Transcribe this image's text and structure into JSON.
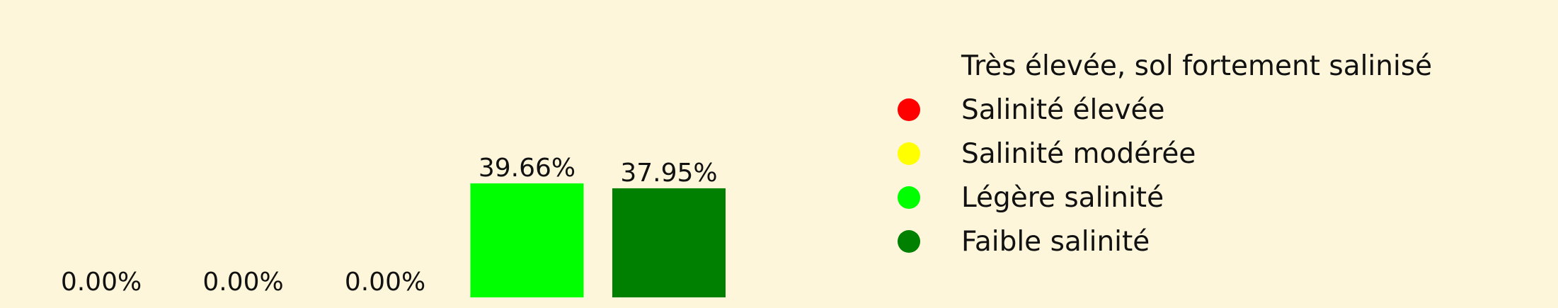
{
  "chart_data": {
    "type": "bar",
    "categories": [
      "Très élevée, sol fortement salinisé",
      "Salinité élevée",
      "Salinité modérée",
      "Légère salinité",
      "Faible salinité"
    ],
    "values": [
      0.0,
      0.0,
      0.0,
      39.66,
      37.95
    ],
    "data_labels": [
      "0.00%",
      "0.00%",
      "0.00%",
      "39.66%",
      "37.95%"
    ],
    "colors": [
      "#fdf6da",
      "#ff0000",
      "#ffff00",
      "#00ff00",
      "#008000"
    ],
    "ylim": [
      0,
      39.66
    ],
    "grid": false,
    "legend_position": "right",
    "legend": [
      {
        "label": "Très élevée, sol fortement salinisé",
        "color": "#fdf6da"
      },
      {
        "label": "Salinité élevée",
        "color": "#ff0000"
      },
      {
        "label": "Salinité modérée",
        "color": "#ffff00"
      },
      {
        "label": "Légère salinité",
        "color": "#00ff00"
      },
      {
        "label": "Faible salinité",
        "color": "#008000"
      }
    ]
  }
}
